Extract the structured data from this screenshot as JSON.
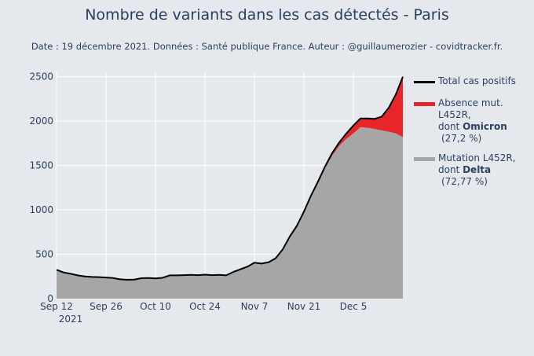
{
  "header": {
    "title": "Nombre de variants dans les cas détectés - Paris",
    "subtitle": "Date : 19 décembre 2021. Données : Santé publique France. Auteur : @guillaumerozier - covidtracker.fr."
  },
  "legend": {
    "total": {
      "label": "Total cas positifs",
      "color": "#000000"
    },
    "omicron": {
      "line1": "Absence mut. L452R,",
      "prefix": "dont ",
      "name": "Omicron",
      "pct": "(27,2 %)",
      "color": "#e8262a"
    },
    "delta": {
      "line1": "Mutation L452R,",
      "prefix": "dont ",
      "name": "Delta",
      "pct": "(72,77 %)",
      "color": "#a6a6a6"
    }
  },
  "chart_data": {
    "type": "area",
    "title": "Nombre de variants dans les cas détectés - Paris",
    "x_ticks": [
      "Sep 12",
      "Sep 26",
      "Oct 10",
      "Oct 24",
      "Nov 7",
      "Nov 21",
      "Dec 5"
    ],
    "x_ticks_day_index": [
      0,
      14,
      28,
      42,
      56,
      70,
      84
    ],
    "x_year_label": "2021",
    "y_ticks": [
      "0",
      "500",
      "1000",
      "1500",
      "2000",
      "2500"
    ],
    "ylim": [
      0,
      2550
    ],
    "x_range_days": [
      0,
      98
    ],
    "series": [
      {
        "name": "Total cas positifs",
        "day": [
          0,
          2,
          4,
          6,
          8,
          10,
          12,
          14,
          16,
          18,
          20,
          22,
          24,
          26,
          28,
          30,
          32,
          34,
          36,
          38,
          40,
          42,
          44,
          46,
          48,
          50,
          52,
          54,
          56,
          58,
          60,
          62,
          64,
          66,
          68,
          70,
          72,
          74,
          76,
          78,
          80,
          82,
          84,
          86,
          88,
          90,
          92,
          94,
          96,
          98
        ],
        "values": [
          325,
          295,
          280,
          262,
          250,
          245,
          242,
          238,
          232,
          218,
          212,
          215,
          230,
          232,
          228,
          235,
          262,
          262,
          265,
          268,
          265,
          270,
          265,
          268,
          262,
          300,
          330,
          360,
          405,
          395,
          410,
          455,
          555,
          700,
          820,
          980,
          1160,
          1320,
          1490,
          1640,
          1760,
          1860,
          1950,
          2030,
          2030,
          2025,
          2050,
          2150,
          2300,
          2500
        ]
      },
      {
        "name": "Delta (Mutation L452R)",
        "day": [
          0,
          2,
          4,
          6,
          8,
          10,
          12,
          14,
          16,
          18,
          20,
          22,
          24,
          26,
          28,
          30,
          32,
          34,
          36,
          38,
          40,
          42,
          44,
          46,
          48,
          50,
          52,
          54,
          56,
          58,
          60,
          62,
          64,
          66,
          68,
          70,
          72,
          74,
          76,
          78,
          80,
          82,
          84,
          86,
          88,
          90,
          92,
          94,
          96,
          98
        ],
        "values": [
          320,
          290,
          275,
          258,
          246,
          241,
          238,
          234,
          228,
          214,
          208,
          211,
          226,
          228,
          224,
          231,
          258,
          258,
          261,
          264,
          261,
          266,
          261,
          264,
          258,
          295,
          325,
          355,
          400,
          390,
          405,
          450,
          550,
          695,
          815,
          975,
          1150,
          1305,
          1470,
          1610,
          1720,
          1800,
          1860,
          1930,
          1925,
          1910,
          1895,
          1880,
          1860,
          1820
        ]
      }
    ]
  }
}
